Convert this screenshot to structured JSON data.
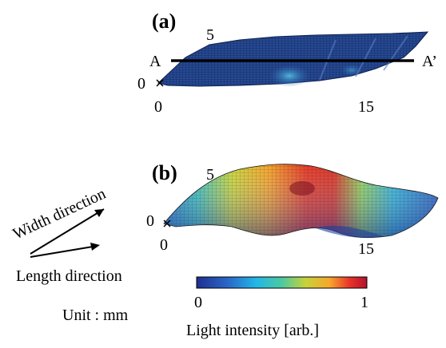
{
  "panel_a": {
    "label": "(a)",
    "ticks": {
      "y_top": "5",
      "y_origin": "0",
      "x_origin": "0",
      "x_end": "15"
    },
    "section_left": "A",
    "section_right": "A’"
  },
  "panel_b": {
    "label": "(b)",
    "ticks": {
      "y_top": "5",
      "y_origin": "0",
      "x_origin": "0",
      "x_end": "15"
    }
  },
  "axes_legend": {
    "width_direction": "Width direction",
    "length_direction": "Length direction",
    "unit": "Unit : mm"
  },
  "colorbar": {
    "min_label": "0",
    "max_label": "1",
    "title": "Light intensity [arb.]",
    "colors": [
      "#1f2f8f",
      "#2a66c8",
      "#22b7e6",
      "#4cc9a0",
      "#c8d23a",
      "#f7a72b",
      "#e8332a",
      "#b3122b"
    ]
  }
}
